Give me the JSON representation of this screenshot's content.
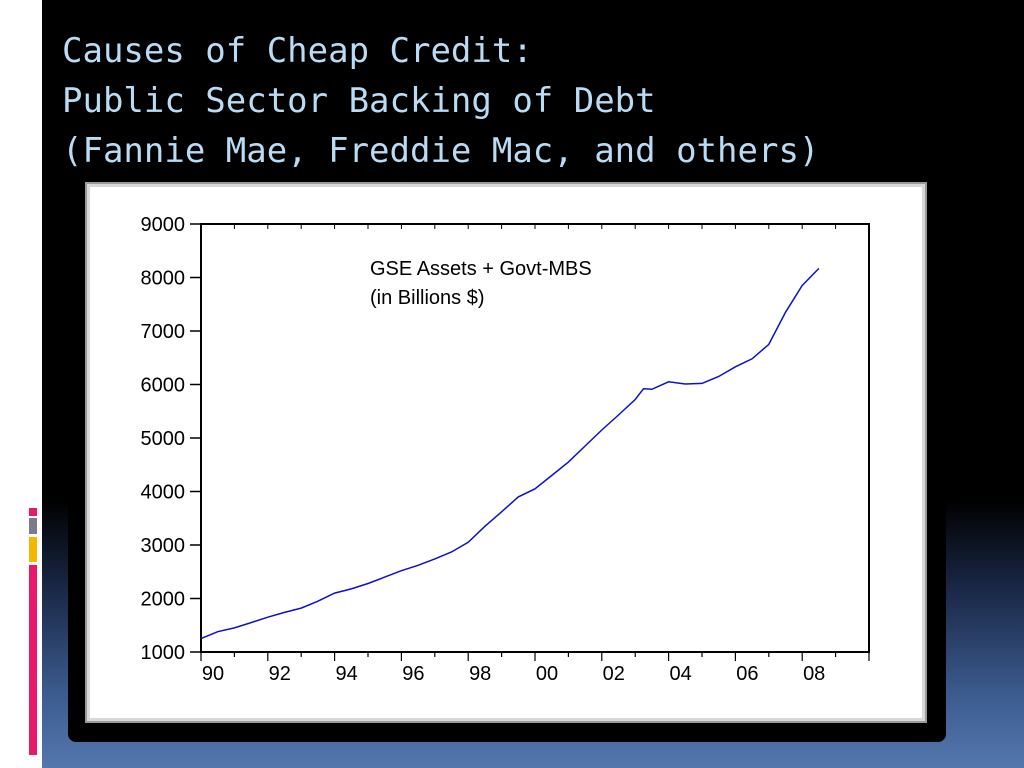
{
  "slide": {
    "title_lines": [
      "Causes of Cheap Credit:",
      "Public Sector Backing of Debt",
      "(Fannie Mae, Freddie Mac, and others)"
    ],
    "colors": {
      "background": "#000000",
      "title": "#b9dcf4",
      "accent_pink": "#e8186a",
      "accent_gray": "#7a7a8a",
      "accent_yellow": "#f5b800",
      "line": "#1010c8"
    }
  },
  "chart_data": {
    "type": "line",
    "annotation": [
      "GSE Assets + Govt-MBS",
      "(in Billions $)"
    ],
    "xlabel": "",
    "ylabel": "",
    "ylim": [
      1000,
      9000
    ],
    "yticks": [
      1000,
      2000,
      3000,
      4000,
      5000,
      6000,
      7000,
      8000,
      9000
    ],
    "xlim": [
      1990,
      2010
    ],
    "xtick_labels": [
      "90",
      "92",
      "94",
      "96",
      "98",
      "00",
      "02",
      "04",
      "06",
      "08"
    ],
    "xtick_values": [
      1990,
      1992,
      1994,
      1996,
      1998,
      2000,
      2002,
      2004,
      2006,
      2008
    ],
    "grid": false,
    "legend": "none",
    "series": [
      {
        "x": [
          1990,
          1990.5,
          1991,
          1991.5,
          1992,
          1992.5,
          1993,
          1993.5,
          1994,
          1994.5,
          1995,
          1995.5,
          1996,
          1996.5,
          1997,
          1997.5,
          1998,
          1998.5,
          1999,
          1999.5,
          2000,
          2000.5,
          2001,
          2001.5,
          2002,
          2002.5,
          2003,
          2003.25,
          2003.5,
          2004,
          2004.5,
          2005,
          2005.5,
          2006,
          2006.5,
          2007,
          2007.5,
          2008,
          2008.5
        ],
        "values": [
          1250,
          1380,
          1450,
          1550,
          1650,
          1740,
          1820,
          1950,
          2100,
          2180,
          2280,
          2400,
          2520,
          2620,
          2740,
          2870,
          3050,
          3350,
          3620,
          3900,
          4050,
          4300,
          4550,
          4850,
          5150,
          5430,
          5720,
          5920,
          5910,
          6050,
          6010,
          6020,
          6150,
          6330,
          6480,
          6750,
          7350,
          7850,
          8170
        ]
      }
    ]
  }
}
